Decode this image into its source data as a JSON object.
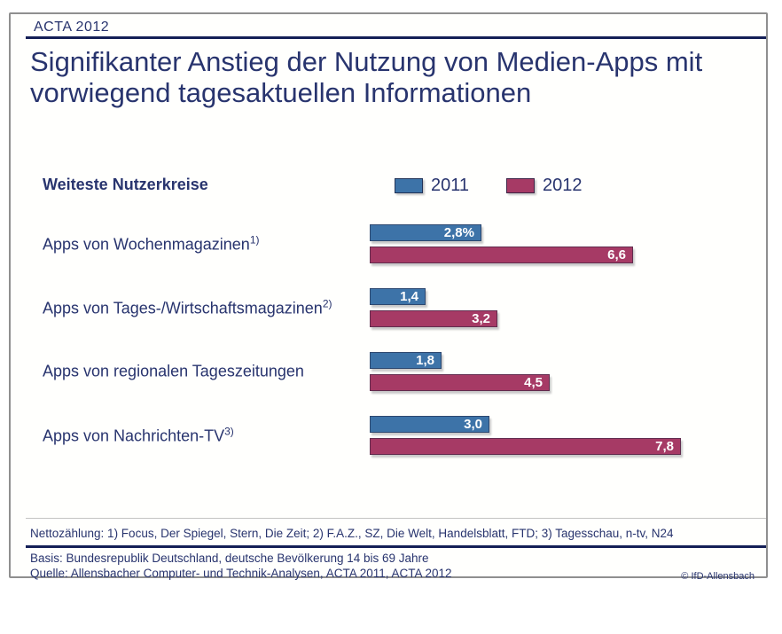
{
  "header": {
    "label": "ACTA 2012"
  },
  "title": "Signifikanter Anstieg der Nutzung von Medien-Apps mit vorwiegend tagesaktuellen Informationen",
  "axis_note": "Weiteste Nutzerkreise",
  "chart_data": {
    "type": "bar",
    "orientation": "horizontal",
    "title": "Signifikanter Anstieg der Nutzung von Medien-Apps mit vorwiegend tagesaktuellen Informationen",
    "categories": [
      {
        "label": "Apps von Wochenmagazinen",
        "sup": "1)"
      },
      {
        "label": "Apps von Tages-/Wirtschaftsmagazinen",
        "sup": "2)"
      },
      {
        "label": "Apps von regionalen Tageszeitungen",
        "sup": ""
      },
      {
        "label": "Apps von Nachrichten-TV",
        "sup": "3)"
      }
    ],
    "series": [
      {
        "name": "2011",
        "color": "#3d73a8",
        "values": [
          2.8,
          1.4,
          1.8,
          3.0
        ],
        "labels": [
          "2,8%",
          "1,4",
          "1,8",
          "3,0"
        ]
      },
      {
        "name": "2012",
        "color": "#a63a65",
        "values": [
          6.6,
          3.2,
          4.5,
          7.8
        ],
        "labels": [
          "6,6",
          "3,2",
          "4,5",
          "7,8"
        ]
      }
    ],
    "xlim": [
      0,
      10
    ],
    "legend_position": "top",
    "grid": false
  },
  "footnotes": {
    "netto": "Nettozählung: 1) Focus, Der Spiegel, Stern, Die Zeit; 2) F.A.Z., SZ, Die Welt, Handelsblatt, FTD; 3) Tagesschau, n-tv, N24",
    "basis": "Basis: Bundesrepublik Deutschland, deutsche Bevölkerung 14 bis 69 Jahre",
    "quelle": "Quelle: Allensbacher Computer- und Technik-Analysen, ACTA 2011, ACTA 2012",
    "copyright": "© IfD-Allensbach"
  },
  "colors": {
    "navy_text": "#28346e",
    "rule_navy": "#141f56",
    "bar_2011": "#3d73a8",
    "bar_2012": "#a63a65",
    "frame_gray": "#8f8f8f",
    "value_label": "#ffffff"
  }
}
